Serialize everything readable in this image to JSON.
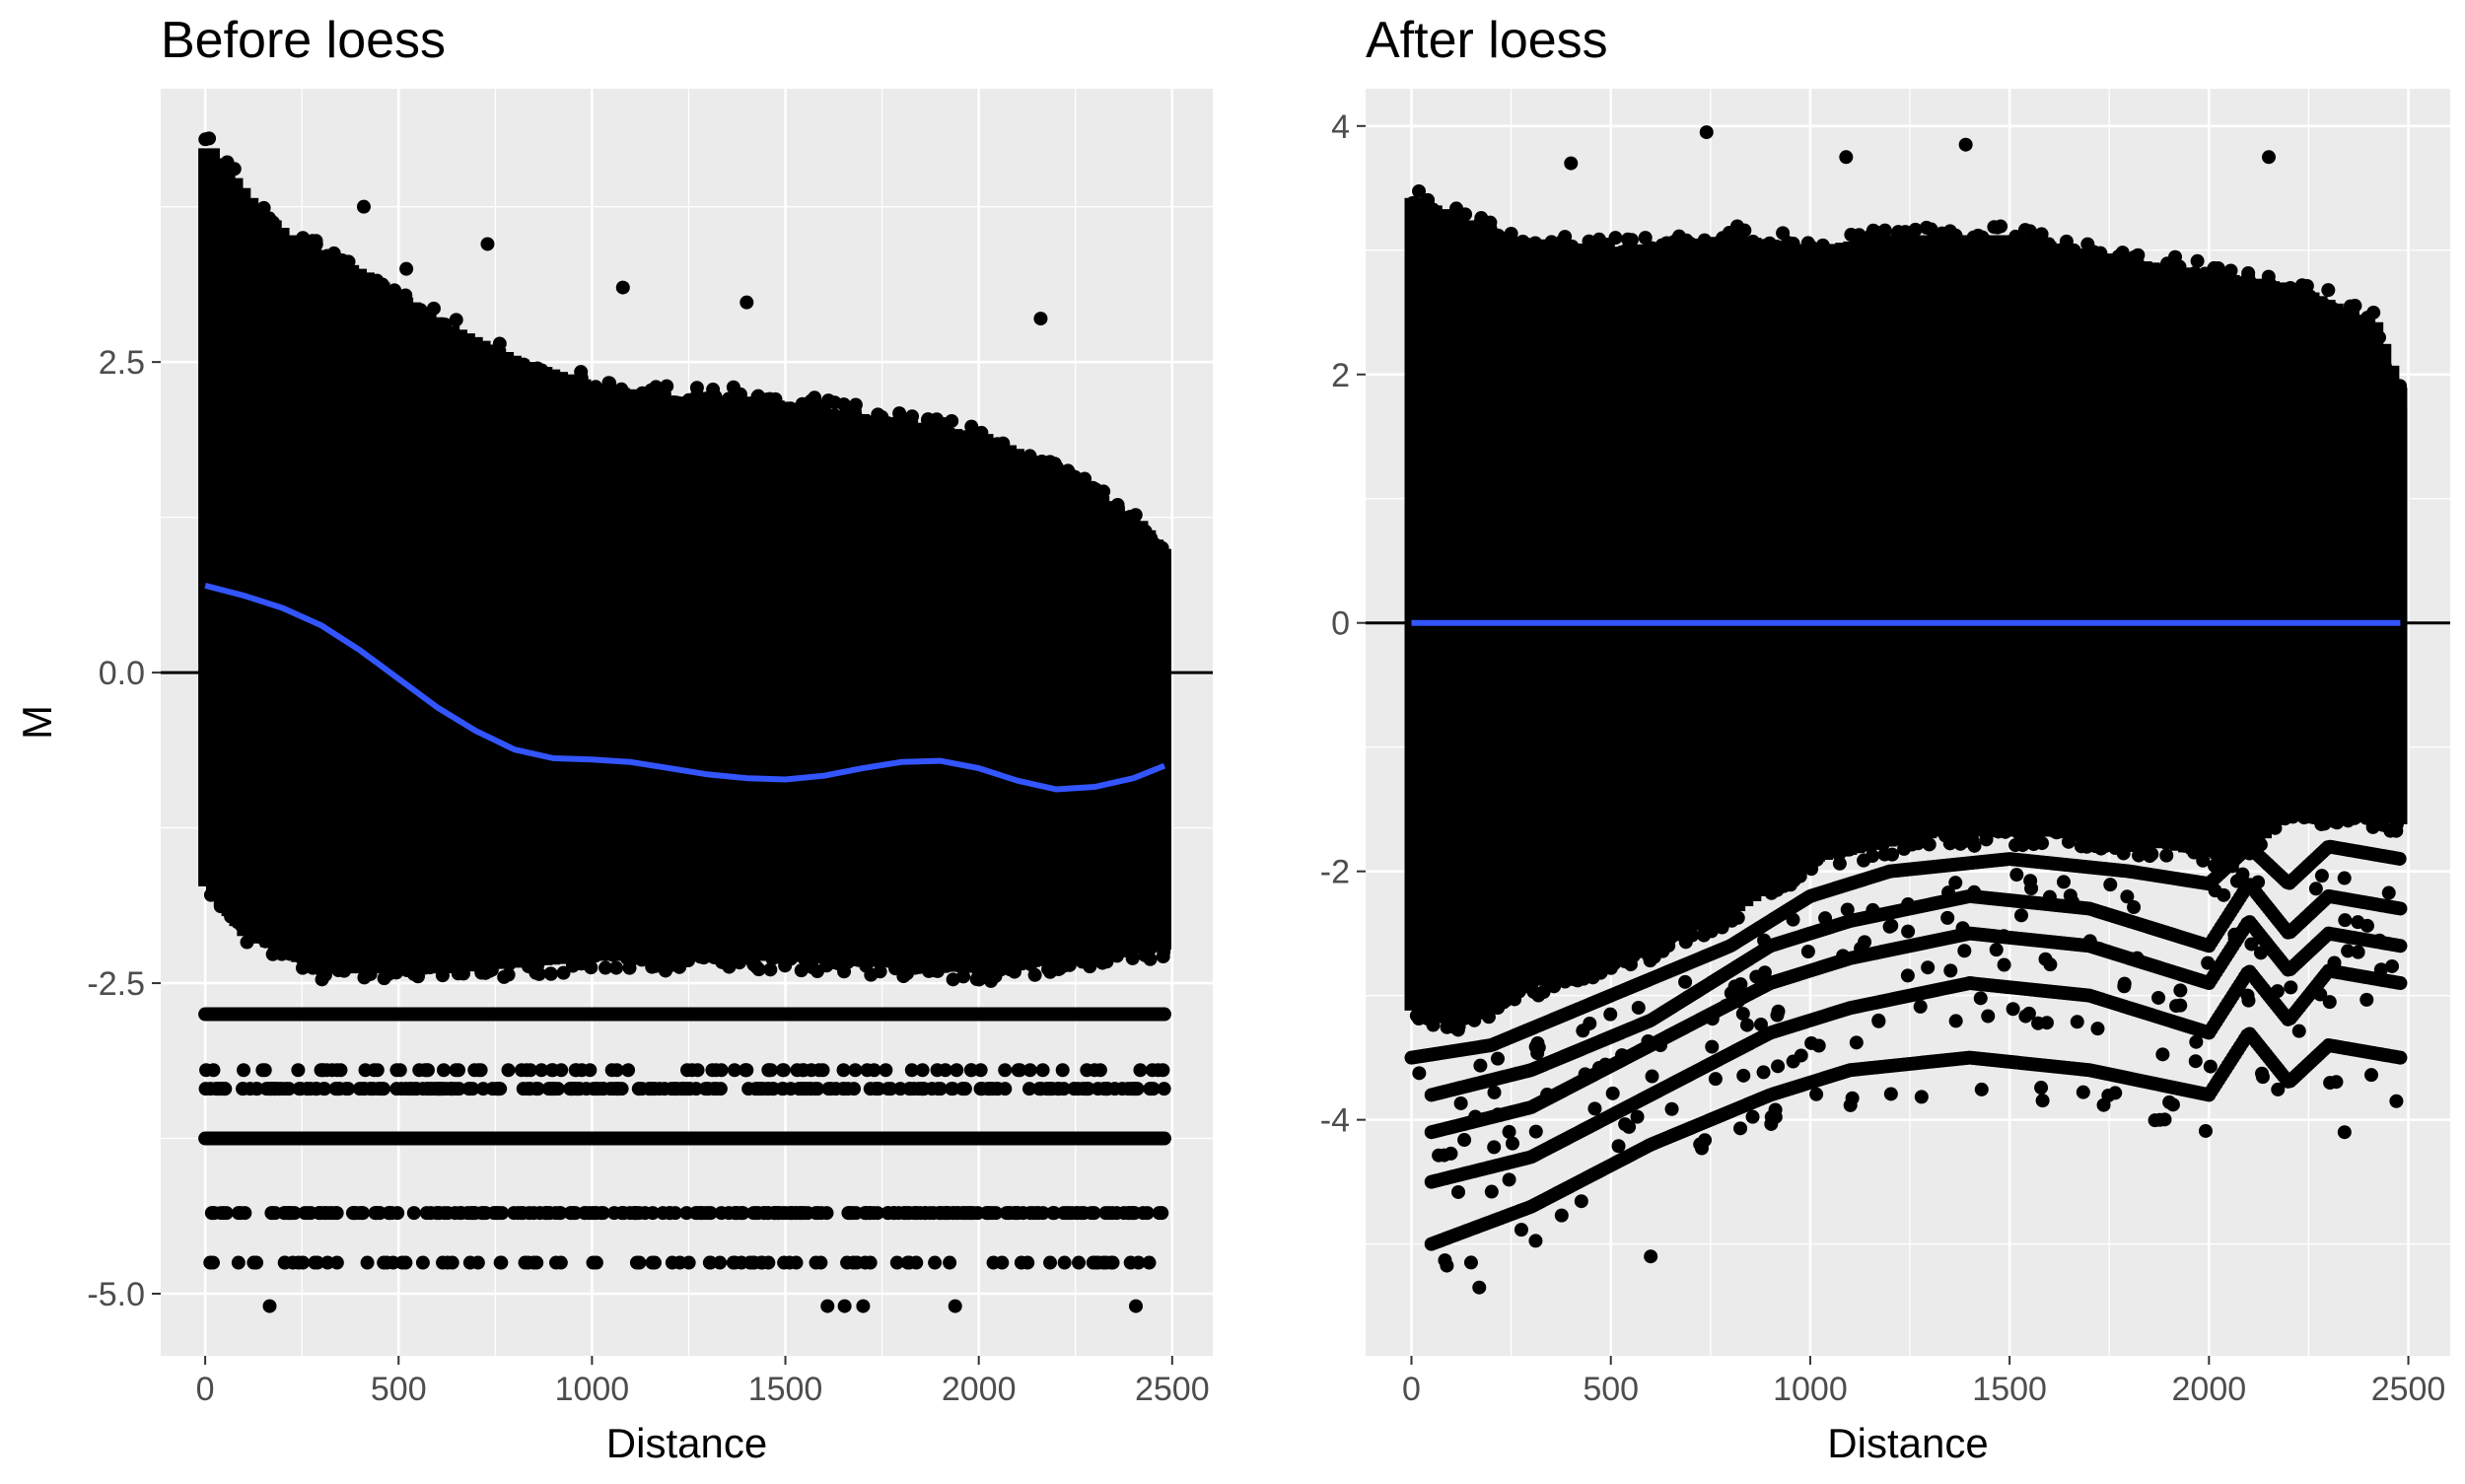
{
  "chart_data": [
    {
      "type": "scatter",
      "title": "Before loess",
      "xlabel": "Distance",
      "ylabel": "M",
      "xlim": [
        -115,
        2605
      ],
      "ylim": [
        -5.5,
        4.7
      ],
      "x_ticks": [
        0,
        500,
        1000,
        1500,
        2000,
        2500
      ],
      "x_tick_labels": [
        "0",
        "500",
        "1000",
        "1500",
        "2000",
        "2500"
      ],
      "y_ticks": [
        -5.0,
        -2.5,
        0.0,
        2.5
      ],
      "y_tick_labels": [
        "-5.0",
        "-2.5",
        "0.0",
        "2.5"
      ],
      "grid": true,
      "reference_line_y": 0,
      "point_color": "#000000",
      "fit_color": "#3355ff",
      "point_cloud": {
        "x_range": [
          0,
          2480
        ],
        "upper_envelope": [
          [
            0,
            4.3
          ],
          [
            100,
            3.9
          ],
          [
            200,
            3.6
          ],
          [
            400,
            3.3
          ],
          [
            600,
            2.9
          ],
          [
            800,
            2.6
          ],
          [
            1000,
            2.4
          ],
          [
            1200,
            2.3
          ],
          [
            1400,
            2.3
          ],
          [
            1600,
            2.2
          ],
          [
            1800,
            2.1
          ],
          [
            2000,
            2.0
          ],
          [
            2200,
            1.7
          ],
          [
            2400,
            1.3
          ],
          [
            2480,
            1.0
          ]
        ],
        "lower_envelope": [
          [
            0,
            -1.8
          ],
          [
            100,
            -2.2
          ],
          [
            300,
            -2.5
          ],
          [
            600,
            -2.5
          ],
          [
            1000,
            -2.4
          ],
          [
            1500,
            -2.4
          ],
          [
            2000,
            -2.5
          ],
          [
            2480,
            -2.3
          ]
        ]
      },
      "horizontal_bands": [
        {
          "y": -2.75,
          "density": "solid"
        },
        {
          "y": -3.2,
          "density": "sparse"
        },
        {
          "y": -3.35,
          "density": "dense"
        },
        {
          "y": -3.75,
          "density": "solid"
        },
        {
          "y": -4.35,
          "density": "dense"
        },
        {
          "y": -4.75,
          "density": "sparse"
        },
        {
          "y": -5.1,
          "density": "rare"
        }
      ],
      "outliers": [
        [
          10,
          4.3
        ],
        [
          410,
          3.75
        ],
        [
          730,
          3.45
        ],
        [
          1080,
          3.1
        ],
        [
          1400,
          2.98
        ],
        [
          2160,
          2.85
        ],
        [
          520,
          3.25
        ]
      ],
      "fit_line": {
        "x": [
          0,
          100,
          200,
          300,
          400,
          500,
          600,
          700,
          800,
          900,
          1000,
          1100,
          1200,
          1300,
          1400,
          1500,
          1600,
          1700,
          1800,
          1900,
          2000,
          2100,
          2200,
          2300,
          2400,
          2480
        ],
        "y": [
          0.7,
          0.62,
          0.52,
          0.38,
          0.18,
          -0.05,
          -0.28,
          -0.47,
          -0.62,
          -0.69,
          -0.7,
          -0.72,
          -0.77,
          -0.82,
          -0.85,
          -0.86,
          -0.83,
          -0.77,
          -0.72,
          -0.71,
          -0.77,
          -0.87,
          -0.94,
          -0.92,
          -0.85,
          -0.75
        ]
      }
    },
    {
      "type": "scatter",
      "title": "After loess",
      "xlabel": "Distance",
      "ylabel": "",
      "xlim": [
        -115,
        2605
      ],
      "ylim": [
        -5.9,
        4.3
      ],
      "x_ticks": [
        0,
        500,
        1000,
        1500,
        2000,
        2500
      ],
      "x_tick_labels": [
        "0",
        "500",
        "1000",
        "1500",
        "2000",
        "2500"
      ],
      "y_ticks": [
        -4,
        -2,
        0,
        2,
        4
      ],
      "y_tick_labels": [
        "-4",
        "-2",
        "0",
        "2",
        "4"
      ],
      "grid": true,
      "reference_line_y": 0,
      "point_color": "#000000",
      "fit_color": "#3355ff",
      "point_cloud": {
        "x_range": [
          0,
          2480
        ],
        "upper_envelope": [
          [
            0,
            3.5
          ],
          [
            200,
            3.2
          ],
          [
            500,
            3.1
          ],
          [
            800,
            3.2
          ],
          [
            1000,
            3.1
          ],
          [
            1200,
            3.2
          ],
          [
            1500,
            3.2
          ],
          [
            1800,
            3.0
          ],
          [
            2000,
            2.9
          ],
          [
            2200,
            2.8
          ],
          [
            2400,
            2.5
          ],
          [
            2480,
            1.8
          ]
        ],
        "lower_envelope": [
          [
            0,
            -3.2
          ],
          [
            100,
            -3.3
          ],
          [
            300,
            -3.0
          ],
          [
            600,
            -2.7
          ],
          [
            800,
            -2.4
          ],
          [
            1000,
            -2.0
          ],
          [
            1300,
            -1.8
          ],
          [
            1600,
            -1.8
          ],
          [
            1900,
            -1.9
          ],
          [
            2050,
            -2.0
          ],
          [
            2200,
            -1.6
          ],
          [
            2480,
            -1.7
          ]
        ]
      },
      "curved_bands": [
        {
          "y": [
            [
              0,
              -3.5
            ],
            [
              200,
              -3.4
            ],
            [
              500,
              -3.0
            ],
            [
              800,
              -2.6
            ],
            [
              1000,
              -2.2
            ],
            [
              1200,
              -2.0
            ],
            [
              1500,
              -1.9
            ],
            [
              1800,
              -2.0
            ],
            [
              2000,
              -2.1
            ],
            [
              2100,
              -1.8
            ],
            [
              2200,
              -2.1
            ],
            [
              2300,
              -1.8
            ],
            [
              2480,
              -1.9
            ]
          ]
        },
        {
          "y": [
            [
              50,
              -3.8
            ],
            [
              300,
              -3.6
            ],
            [
              600,
              -3.2
            ],
            [
              900,
              -2.6
            ],
            [
              1100,
              -2.4
            ],
            [
              1400,
              -2.2
            ],
            [
              1700,
              -2.3
            ],
            [
              2000,
              -2.6
            ],
            [
              2100,
              -2.1
            ],
            [
              2200,
              -2.5
            ],
            [
              2300,
              -2.2
            ],
            [
              2480,
              -2.3
            ]
          ]
        },
        {
          "y": [
            [
              50,
              -4.1
            ],
            [
              300,
              -3.9
            ],
            [
              600,
              -3.4
            ],
            [
              900,
              -2.9
            ],
            [
              1100,
              -2.7
            ],
            [
              1400,
              -2.5
            ],
            [
              1700,
              -2.6
            ],
            [
              2000,
              -2.9
            ],
            [
              2100,
              -2.4
            ],
            [
              2200,
              -2.8
            ],
            [
              2300,
              -2.5
            ],
            [
              2480,
              -2.6
            ]
          ]
        },
        {
          "y": [
            [
              50,
              -4.5
            ],
            [
              300,
              -4.3
            ],
            [
              600,
              -3.8
            ],
            [
              900,
              -3.3
            ],
            [
              1100,
              -3.1
            ],
            [
              1400,
              -2.9
            ],
            [
              1700,
              -3.0
            ],
            [
              2000,
              -3.3
            ],
            [
              2100,
              -2.8
            ],
            [
              2200,
              -3.2
            ],
            [
              2300,
              -2.8
            ],
            [
              2480,
              -2.9
            ]
          ]
        },
        {
          "y": [
            [
              50,
              -5.0
            ],
            [
              300,
              -4.7
            ],
            [
              600,
              -4.2
            ],
            [
              900,
              -3.8
            ],
            [
              1100,
              -3.6
            ],
            [
              1400,
              -3.5
            ],
            [
              1700,
              -3.6
            ],
            [
              2000,
              -3.8
            ],
            [
              2100,
              -3.3
            ],
            [
              2200,
              -3.7
            ],
            [
              2300,
              -3.4
            ],
            [
              2480,
              -3.5
            ]
          ]
        }
      ],
      "outliers": [
        [
          740,
          3.95
        ],
        [
          1390,
          3.85
        ],
        [
          2150,
          3.75
        ],
        [
          400,
          3.7
        ],
        [
          1090,
          3.75
        ],
        [
          170,
          -5.35
        ],
        [
          600,
          -5.1
        ],
        [
          2340,
          -4.1
        ],
        [
          2470,
          -3.85
        ]
      ],
      "fit_line": {
        "x": [
          0,
          2480
        ],
        "y": [
          0,
          0
        ]
      }
    }
  ]
}
